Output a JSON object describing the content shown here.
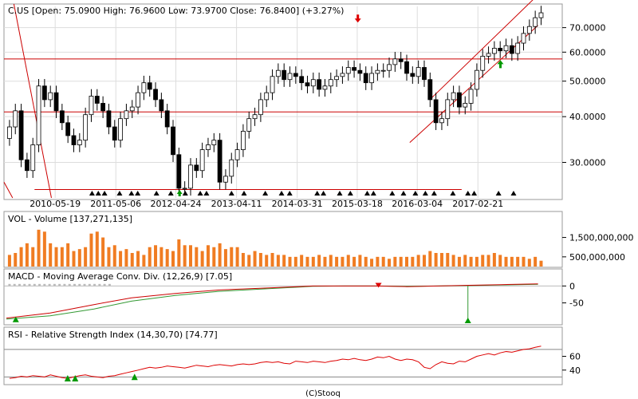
{
  "chart_data": [
    {
      "type": "candlestick",
      "title": "C.US [Open: 75.0900  High: 76.9600  Low: 73.9700  Close: 76.8400]  (+3.27%)",
      "y_scale": "log",
      "ylim": [
        24,
        80
      ],
      "y_ticks": [
        "70.0000",
        "60.0000",
        "50.0000",
        "40.0000",
        "30.0000"
      ],
      "y_tick_values": [
        70,
        60,
        50,
        40,
        30
      ],
      "x_tick_labels": [
        "2010-05-19",
        "2011-05-06",
        "2012-04-24",
        "2013-04-11",
        "2014-03-31",
        "2015-03-18",
        "2016-03-04",
        "2017-02-21"
      ],
      "x_tick_dates": [
        2010.38,
        2011.35,
        2012.31,
        2013.28,
        2014.25,
        2015.21,
        2016.17,
        2017.14
      ],
      "xlim": [
        2009.6,
        2018.45
      ],
      "closes": [
        37.5,
        41.5,
        30.5,
        28.5,
        33.5,
        48.5,
        44.5,
        46.5,
        41.5,
        38.5,
        35.5,
        33.5,
        34.5,
        40.5,
        45.5,
        43.5,
        41.5,
        37.5,
        34.5,
        39.5,
        41.5,
        42.5,
        46.5,
        49.5,
        47.5,
        44.5,
        41.5,
        37.5,
        31.5,
        25.5,
        25.5,
        29.5,
        28.5,
        32.5,
        33.5,
        34.5,
        26.5,
        27.5,
        30.5,
        32.5,
        36.5,
        39.5,
        40.5,
        44.5,
        46.5,
        51.5,
        53.5,
        50.5,
        52.5,
        51.5,
        49.5,
        48.5,
        50.5,
        47.5,
        48.5,
        50.5,
        51.5,
        52.5,
        54.5,
        53.5,
        52.5,
        49.5,
        52.5,
        53.5,
        53.5,
        55.5,
        57.5,
        56.5,
        52.5,
        51.5,
        54.5,
        50.5,
        44.5,
        38.5,
        39.5,
        44.5,
        46.5,
        42.5,
        43.5,
        47.5,
        53.5,
        58.5,
        59.5,
        61.5,
        60.5,
        62.5,
        59.5,
        63.5,
        67.5,
        70.5,
        74.5,
        76.84
      ],
      "trend_channel_upper": [
        {
          "x": 2016.4,
          "y": 45
        },
        {
          "x": 2018.1,
          "y": 86
        }
      ],
      "trend_channel_lower": [
        {
          "x": 2016.05,
          "y": 34
        },
        {
          "x": 2018.1,
          "y": 71
        }
      ],
      "markers": [
        {
          "type": "sell",
          "color": "#dd0000",
          "x": 2015.22,
          "y": 73
        },
        {
          "type": "buy",
          "color": "#009900",
          "x": 2017.5,
          "y": 56.5
        }
      ],
      "bottom_triangles_dates": [
        2010.97,
        2011.07,
        2011.17,
        2011.41,
        2011.6,
        2011.7,
        2012.0,
        2012.23,
        2012.46,
        2012.7,
        2012.8,
        2013.2,
        2013.4,
        2013.74,
        2014.0,
        2014.13,
        2014.57,
        2014.67,
        2014.93,
        2015.1,
        2015.37,
        2015.47,
        2015.77,
        2015.95,
        2016.14,
        2016.3,
        2016.44,
        2016.74,
        2016.98,
        2017.08,
        2017.47,
        2017.71
      ],
      "bottom_triangle_up_date": 2012.37
    },
    {
      "type": "bar",
      "title": "VOL - Volume [137,271,135]",
      "y_ticks": [
        "1,500,000,000",
        "500,000,000"
      ],
      "y_tick_values": [
        1500000000,
        500000000
      ],
      "ylim": [
        0,
        2100000000
      ],
      "values": [
        600000000,
        700000000,
        1000000000,
        1200000000,
        1000000000,
        1900000000,
        1800000000,
        1200000000,
        1000000000,
        1000000000,
        1200000000,
        800000000,
        900000000,
        1000000000,
        1700000000,
        1800000000,
        1500000000,
        1000000000,
        1100000000,
        800000000,
        900000000,
        700000000,
        800000000,
        600000000,
        1000000000,
        1100000000,
        1000000000,
        900000000,
        800000000,
        1400000000,
        1100000000,
        1100000000,
        1000000000,
        800000000,
        1100000000,
        1000000000,
        1200000000,
        900000000,
        1000000000,
        1000000000,
        700000000,
        600000000,
        800000000,
        700000000,
        600000000,
        700000000,
        600000000,
        600000000,
        500000000,
        500000000,
        600000000,
        500000000,
        500000000,
        600000000,
        500000000,
        600000000,
        500000000,
        500000000,
        600000000,
        500000000,
        600000000,
        500000000,
        400000000,
        500000000,
        500000000,
        400000000,
        500000000,
        500000000,
        500000000,
        500000000,
        600000000,
        600000000,
        800000000,
        700000000,
        700000000,
        700000000,
        600000000,
        500000000,
        600000000,
        500000000,
        500000000,
        600000000,
        600000000,
        700000000,
        600000000,
        500000000,
        500000000,
        500000000,
        500000000,
        400000000,
        500000000,
        300000000
      ],
      "color": "#f07c22"
    },
    {
      "type": "line",
      "title": "MACD - Moving Average Conv. Div. (12,26,9) [7.05]",
      "y_ticks": [
        "0",
        "-50"
      ],
      "y_tick_values": [
        0,
        -50
      ],
      "ylim": [
        -110,
        15
      ],
      "macd_points": [
        [
          2009.6,
          -95
        ],
        [
          2010.3,
          -80
        ],
        [
          2011.0,
          -55
        ],
        [
          2011.6,
          -35
        ],
        [
          2012.3,
          -22
        ],
        [
          2013.0,
          -12
        ],
        [
          2014.0,
          -4
        ],
        [
          2014.5,
          0
        ],
        [
          2015.0,
          0
        ],
        [
          2015.5,
          0
        ],
        [
          2016.0,
          -2
        ],
        [
          2016.5,
          0
        ],
        [
          2017.0,
          2
        ],
        [
          2017.5,
          4
        ],
        [
          2018.1,
          6
        ]
      ],
      "signal_points": [
        [
          2009.6,
          -98
        ],
        [
          2010.3,
          -88
        ],
        [
          2011.0,
          -68
        ],
        [
          2011.6,
          -45
        ],
        [
          2012.3,
          -28
        ],
        [
          2013.0,
          -16
        ],
        [
          2014.0,
          -6
        ],
        [
          2014.5,
          -1
        ],
        [
          2015.0,
          0
        ],
        [
          2015.5,
          0
        ],
        [
          2016.0,
          -1
        ],
        [
          2016.5,
          0
        ],
        [
          2017.0,
          1
        ],
        [
          2017.5,
          3
        ],
        [
          2018.1,
          5
        ]
      ],
      "histogram_dates": [
        2009.65,
        2009.73,
        2009.81,
        2009.89,
        2009.97,
        2010.05,
        2010.13,
        2010.21,
        2010.29,
        2010.37,
        2010.45,
        2010.53,
        2010.61,
        2010.69,
        2010.77,
        2010.85,
        2010.93,
        2011.01,
        2011.09,
        2011.17,
        2011.25
      ],
      "histogram_values": [
        6,
        6,
        6,
        6,
        6,
        6,
        6,
        6,
        6,
        6,
        6,
        6,
        6,
        6,
        6,
        6,
        6,
        6,
        6,
        6,
        6
      ],
      "spike": {
        "x": 2016.98,
        "from": 0,
        "to": -108
      },
      "markers": [
        {
          "type": "buy",
          "color": "#009900",
          "x": 2009.75,
          "y": -100
        },
        {
          "type": "sell",
          "color": "#dd0000",
          "x": 2015.55,
          "y": 2
        },
        {
          "type": "buy",
          "color": "#009900",
          "x": 2016.98,
          "y": -103
        }
      ]
    },
    {
      "type": "line",
      "title": "RSI - Relative Strength Index (14,30,70) [74.77]",
      "y_ticks": [
        "60",
        "40"
      ],
      "y_tick_values": [
        60,
        40
      ],
      "ylim": [
        20,
        85
      ],
      "levels": [
        70,
        30
      ],
      "values": [
        28,
        29,
        31,
        30,
        32,
        31,
        30,
        33,
        31,
        29,
        28,
        30,
        32,
        33,
        31,
        30,
        29,
        31,
        32,
        34,
        36,
        38,
        40,
        42,
        44,
        43,
        44,
        46,
        45,
        44,
        43,
        45,
        47,
        46,
        45,
        47,
        48,
        47,
        46,
        48,
        49,
        48,
        49,
        51,
        52,
        51,
        52,
        50,
        49,
        53,
        52,
        51,
        53,
        52,
        51,
        53,
        54,
        56,
        55,
        57,
        55,
        54,
        56,
        59,
        58,
        60,
        56,
        54,
        56,
        55,
        52,
        44,
        42,
        48,
        52,
        50,
        49,
        53,
        52,
        56,
        60,
        62,
        64,
        62,
        65,
        67,
        66,
        68,
        70,
        71,
        73,
        74.77
      ],
      "markers": [
        {
          "type": "buy",
          "color": "#009900",
          "x": 2010.58,
          "y": 27
        },
        {
          "type": "buy",
          "color": "#009900",
          "x": 2010.7,
          "y": 27
        },
        {
          "type": "buy",
          "color": "#009900",
          "x": 2011.65,
          "y": 29
        }
      ]
    }
  ],
  "footer": {
    "copyright": "(C)Stooq"
  },
  "colors": {
    "candle_up": "#ffffff",
    "candle_down": "#000000",
    "support_lines": "#cc0000",
    "ma_red": "#cc0000",
    "ma_green": "#339933",
    "rsi_line": "#dd0000",
    "grid": "#dddddd",
    "volume_bars": "#f07c22"
  }
}
